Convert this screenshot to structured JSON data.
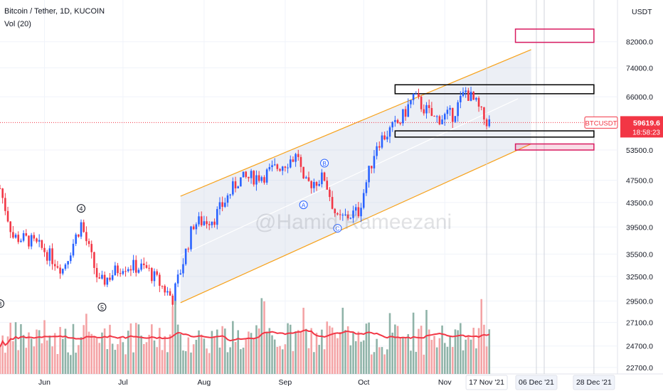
{
  "header": {
    "symbol_line": "Bitcoin / Tether, 1D, KUCOIN",
    "indicator": "Vol (20)"
  },
  "watermark": "@Hamid Rameezani",
  "price_badge": {
    "symbol": "BTCUSDT",
    "price": "59619.6",
    "countdown": "18:58:23",
    "symbol_bg": "#ffffff",
    "price_bg": "#f23645"
  },
  "chart_data": {
    "type": "candlestick",
    "title": "Bitcoin / Tether, 1D, KUCOIN",
    "currency": "USDT",
    "y_scale": "log",
    "ylim": [
      22000,
      95000
    ],
    "y_ticks": [
      "82000.0",
      "74000.0",
      "66000.0",
      "59619.6",
      "53500.0",
      "47500.0",
      "43500.0",
      "39500.0",
      "35500.0",
      "32500.0",
      "29500.0",
      "27100.0",
      "24700.0",
      "22700.0"
    ],
    "y_tick_values": [
      82000,
      74000,
      66000,
      59619.6,
      53500,
      47500,
      43500,
      39500,
      35500,
      32500,
      29500,
      27100,
      24700,
      22700
    ],
    "x_range": [
      "2021-05-15",
      "2022-01-06"
    ],
    "x_ticks": [
      {
        "label": "Jun",
        "date": "2021-06-01"
      },
      {
        "label": "Jul",
        "date": "2021-07-01"
      },
      {
        "label": "Aug",
        "date": "2021-08-01"
      },
      {
        "label": "Sep",
        "date": "2021-09-01"
      },
      {
        "label": "Oct",
        "date": "2021-10-01"
      },
      {
        "label": "Nov",
        "date": "2021-11-01"
      }
    ],
    "x_markers": [
      {
        "label": "17 Nov '21",
        "date": "2021-11-17"
      },
      {
        "label": "06 Dec '21",
        "date": "2021-12-06"
      },
      {
        "label": "28 Dec '21",
        "date": "2021-12-28"
      }
    ],
    "current_price": 59619.6,
    "close_path": [
      {
        "date": "2021-05-15",
        "close": 46000
      },
      {
        "date": "2021-05-20",
        "close": 38000
      },
      {
        "date": "2021-05-26",
        "close": 37500
      },
      {
        "date": "2021-06-01",
        "close": 36000
      },
      {
        "date": "2021-06-08",
        "close": 33500
      },
      {
        "date": "2021-06-15",
        "close": 40000
      },
      {
        "date": "2021-06-22",
        "close": 31500
      },
      {
        "date": "2021-07-01",
        "close": 34000
      },
      {
        "date": "2021-07-10",
        "close": 33500
      },
      {
        "date": "2021-07-20",
        "close": 29800
      },
      {
        "date": "2021-07-28",
        "close": 40000
      },
      {
        "date": "2021-08-05",
        "close": 41000
      },
      {
        "date": "2021-08-14",
        "close": 47500
      },
      {
        "date": "2021-08-24",
        "close": 48500
      },
      {
        "date": "2021-09-06",
        "close": 52500
      },
      {
        "date": "2021-09-08",
        "close": 46500
      },
      {
        "date": "2021-09-16",
        "close": 48000
      },
      {
        "date": "2021-09-21",
        "close": 40500
      },
      {
        "date": "2021-09-29",
        "close": 42000
      },
      {
        "date": "2021-10-06",
        "close": 55000
      },
      {
        "date": "2021-10-15",
        "close": 60000
      },
      {
        "date": "2021-10-20",
        "close": 66000
      },
      {
        "date": "2021-10-28",
        "close": 60500
      },
      {
        "date": "2021-11-04",
        "close": 61500
      },
      {
        "date": "2021-11-09",
        "close": 67500
      },
      {
        "date": "2021-11-13",
        "close": 64000
      },
      {
        "date": "2021-11-16",
        "close": 60500
      },
      {
        "date": "2021-11-18",
        "close": 59620
      }
    ],
    "wave_labels": [
      {
        "label": "3",
        "date": "2021-05-15",
        "price": 29200
      },
      {
        "label": "4",
        "date": "2021-06-15",
        "price": 42500
      },
      {
        "label": "5",
        "date": "2021-06-23",
        "price": 28800
      },
      {
        "label": "A",
        "date": "2021-09-08",
        "price": 43100
      },
      {
        "label": "B",
        "date": "2021-09-16",
        "price": 50800
      },
      {
        "label": "C",
        "date": "2021-09-21",
        "price": 39300
      }
    ],
    "volume": {
      "name": "Vol (20)"
    },
    "colors": {
      "up": "#2962ff",
      "down": "#f23645",
      "channel": "#f7a21b",
      "zone_dark": "#000000",
      "zone_pink": "#d81b60",
      "ma": "#f23645",
      "vol_up": "#8fb3a8",
      "vol_down": "#f4a3a5"
    }
  }
}
